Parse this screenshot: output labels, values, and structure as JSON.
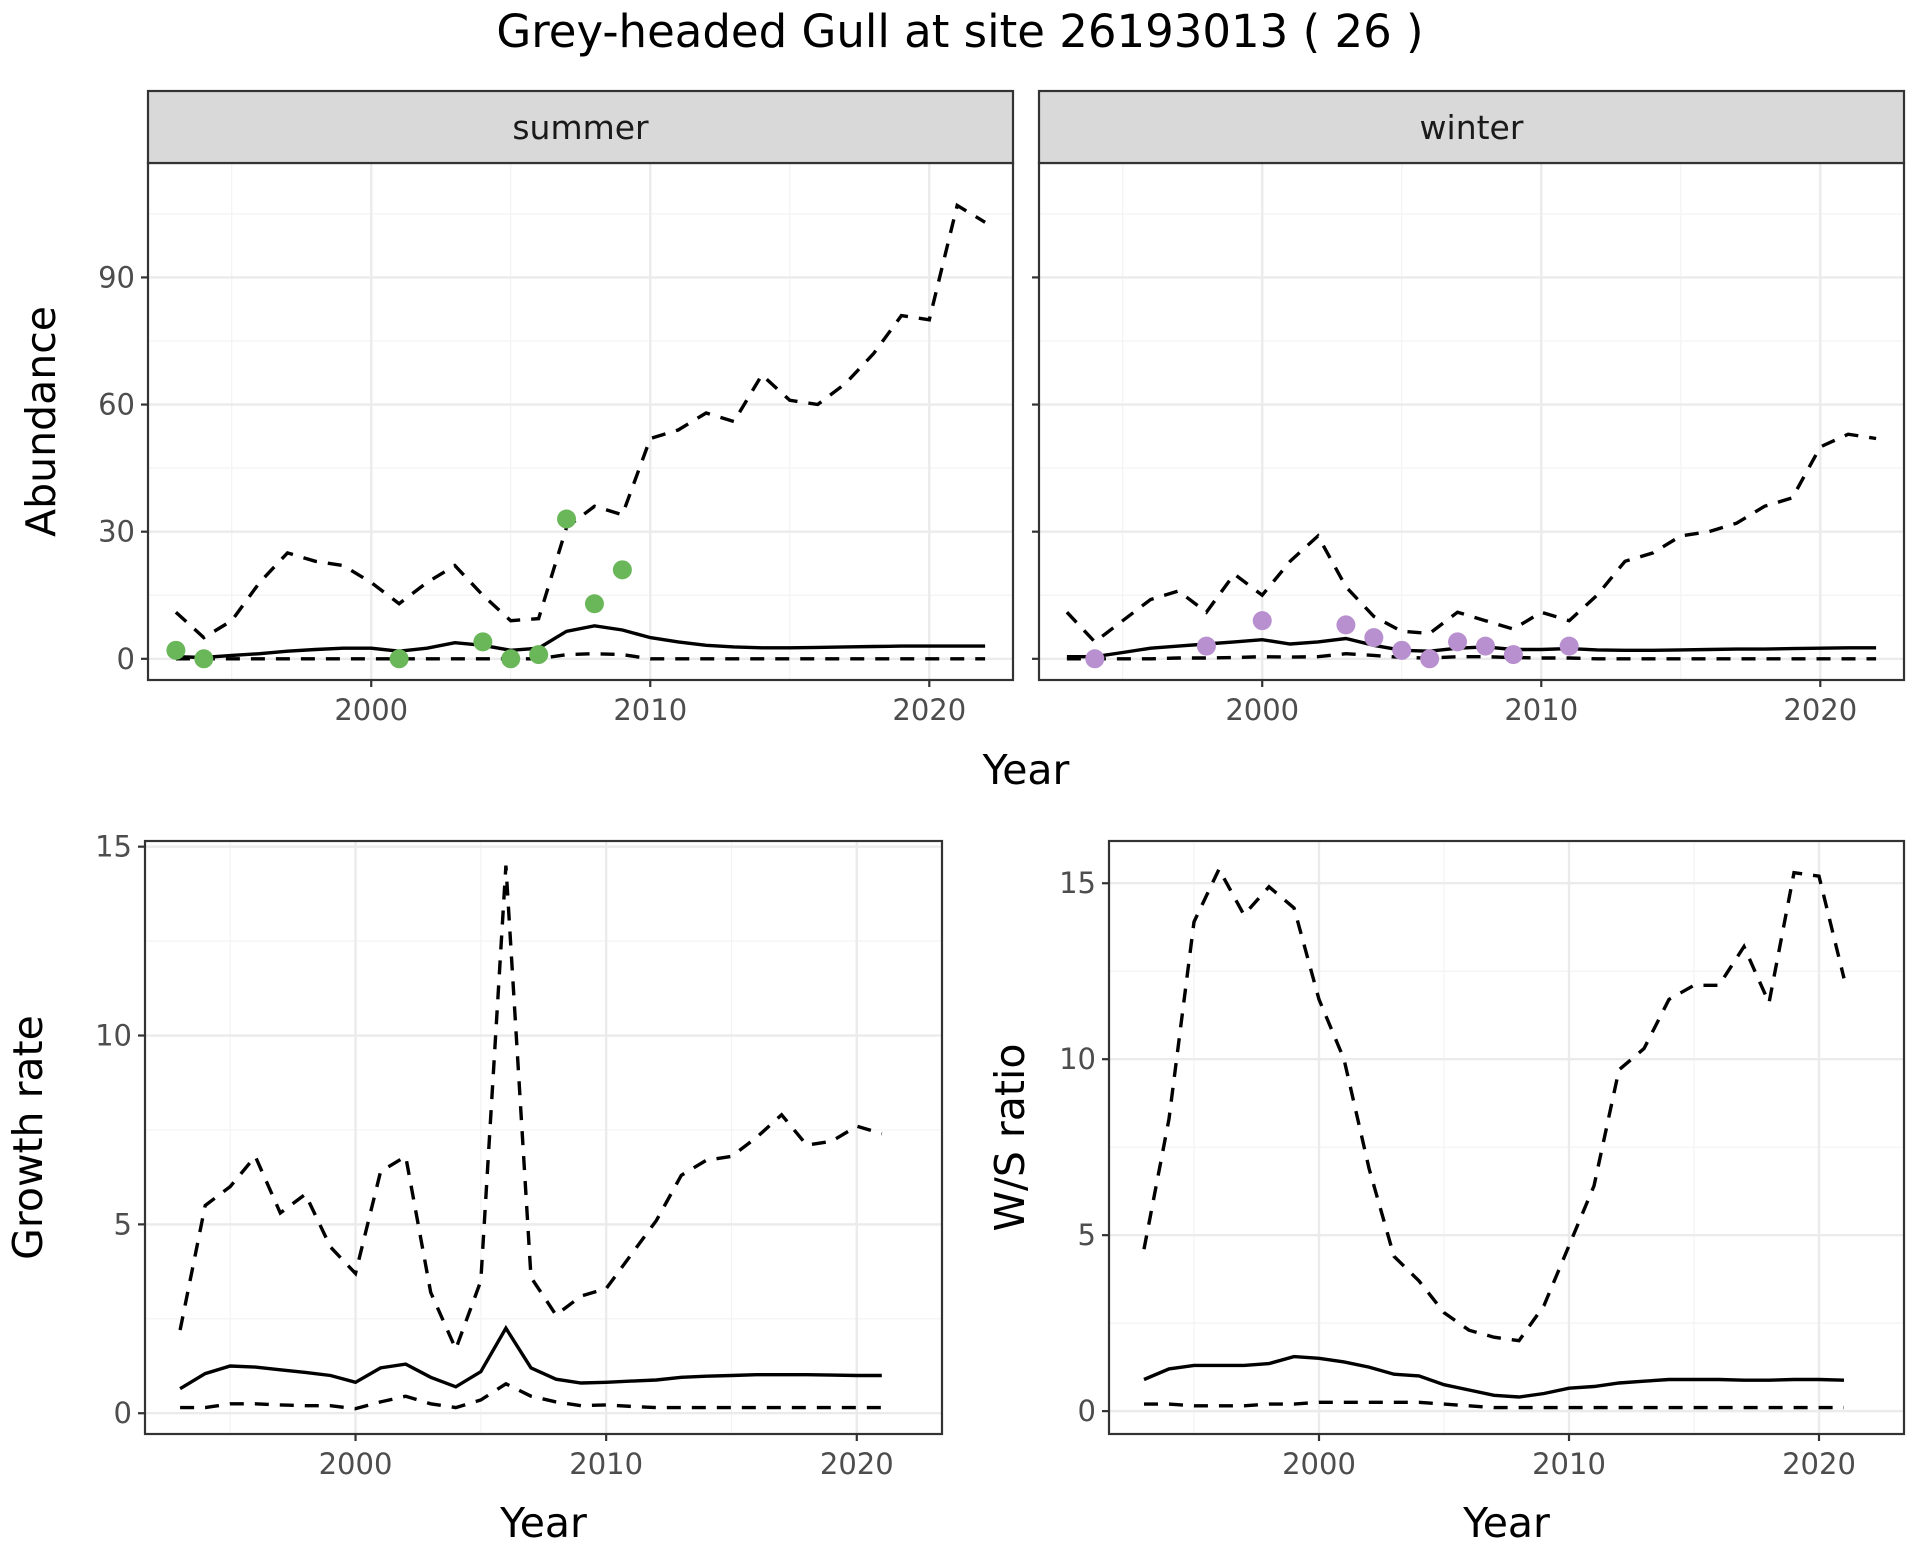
{
  "title": "Grey-headed Gull at site 26193013 ( 26 )",
  "colors": {
    "summer_points": "#6ab75a",
    "winter_points": "#b88fcf"
  },
  "chart_data": [
    {
      "id": "abundance-summer",
      "type": "line",
      "facet": "summer",
      "xlabel": "Year",
      "ylabel": "Abundance",
      "xlim": [
        1992,
        2023
      ],
      "ylim": [
        -5,
        117
      ],
      "xticks": [
        2000,
        2010,
        2020
      ],
      "yticks": [
        0,
        30,
        60,
        90
      ],
      "x": [
        1993,
        1994,
        1995,
        1996,
        1997,
        1998,
        1999,
        2000,
        2001,
        2002,
        2003,
        2004,
        2005,
        2006,
        2007,
        2008,
        2009,
        2010,
        2011,
        2012,
        2013,
        2014,
        2015,
        2016,
        2017,
        2018,
        2019,
        2020,
        2021,
        2022
      ],
      "series": [
        {
          "style": "solid",
          "values": [
            0.5,
            0.3,
            0.8,
            1.2,
            1.8,
            2.2,
            2.5,
            2.5,
            1.8,
            2.5,
            3.8,
            3.2,
            2.0,
            2.5,
            6.5,
            7.8,
            6.8,
            5.0,
            4.0,
            3.2,
            2.8,
            2.6,
            2.6,
            2.7,
            2.8,
            2.9,
            3.0,
            3.0,
            3.0,
            3.0
          ]
        },
        {
          "style": "dashed",
          "values": [
            11,
            5,
            9,
            18,
            25,
            23,
            22,
            18,
            13,
            18,
            22,
            15,
            9,
            9.5,
            31,
            36,
            34,
            52,
            54,
            58,
            56,
            67,
            61,
            60,
            65,
            72,
            81,
            80,
            107,
            103
          ]
        },
        {
          "style": "dashed",
          "values": [
            0,
            0,
            0,
            0,
            0,
            0,
            0,
            0,
            0,
            0,
            0,
            0,
            0,
            0,
            1,
            1.2,
            1,
            0,
            0,
            0,
            0,
            0,
            0,
            0,
            0,
            0,
            0,
            0,
            0,
            0
          ]
        }
      ],
      "points": {
        "x": [
          1993,
          1994,
          2001,
          2004,
          2005,
          2006,
          2007,
          2008,
          2009
        ],
        "y": [
          2,
          0,
          0,
          4,
          0,
          1,
          33,
          13,
          21
        ]
      }
    },
    {
      "id": "abundance-winter",
      "type": "line",
      "facet": "winter",
      "xlabel": "Year",
      "ylabel": "Abundance",
      "xlim": [
        1992,
        2023
      ],
      "ylim": [
        -5,
        117
      ],
      "xticks": [
        2000,
        2010,
        2020
      ],
      "yticks": [
        0,
        30,
        60,
        90
      ],
      "x": [
        1993,
        1994,
        1995,
        1996,
        1997,
        1998,
        1999,
        2000,
        2001,
        2002,
        2003,
        2004,
        2005,
        2006,
        2007,
        2008,
        2009,
        2010,
        2011,
        2012,
        2013,
        2014,
        2015,
        2016,
        2017,
        2018,
        2019,
        2020,
        2021,
        2022
      ],
      "series": [
        {
          "style": "solid",
          "values": [
            0.5,
            0.5,
            1.5,
            2.5,
            3.0,
            3.5,
            4.0,
            4.5,
            3.5,
            4.0,
            4.8,
            3.2,
            2.0,
            1.8,
            2.5,
            2.8,
            2.2,
            2.2,
            2.4,
            2.1,
            2.0,
            2.0,
            2.1,
            2.2,
            2.3,
            2.3,
            2.4,
            2.5,
            2.6,
            2.6
          ]
        },
        {
          "style": "dashed",
          "values": [
            11,
            4,
            9,
            14,
            16,
            11,
            20,
            15,
            23,
            29,
            17,
            10,
            6.5,
            6,
            11,
            9,
            7,
            11,
            9,
            15,
            23,
            25,
            29,
            30,
            32,
            36,
            38,
            50,
            53,
            52
          ]
        },
        {
          "style": "dashed",
          "values": [
            0,
            0,
            0,
            0,
            0.2,
            0.2,
            0.3,
            0.5,
            0.4,
            0.5,
            1.2,
            0.8,
            0.3,
            0.2,
            0.5,
            0.5,
            0.3,
            0.2,
            0.2,
            0,
            0,
            0,
            0,
            0,
            0,
            0,
            0,
            0,
            0,
            0
          ]
        }
      ],
      "points": {
        "x": [
          1994,
          1998,
          2000,
          2003,
          2004,
          2005,
          2006,
          2007,
          2008,
          2009,
          2011
        ],
        "y": [
          0,
          3,
          9,
          8,
          5,
          2,
          0,
          4,
          3,
          1,
          3
        ]
      }
    },
    {
      "id": "growth-rate",
      "type": "line",
      "xlabel": "Year",
      "ylabel": "Growth rate",
      "xlim": [
        1991.6,
        2023.4
      ],
      "ylim": [
        -0.55,
        15.15
      ],
      "xticks": [
        2000,
        2010,
        2020
      ],
      "yticks": [
        0,
        5,
        10,
        15
      ],
      "x": [
        1993,
        1994,
        1995,
        1996,
        1997,
        1998,
        1999,
        2000,
        2001,
        2002,
        2003,
        2004,
        2005,
        2006,
        2007,
        2008,
        2009,
        2010,
        2011,
        2012,
        2013,
        2014,
        2015,
        2016,
        2017,
        2018,
        2019,
        2020,
        2021
      ],
      "series": [
        {
          "style": "solid",
          "values": [
            0.65,
            1.05,
            1.25,
            1.22,
            1.15,
            1.08,
            1.0,
            0.82,
            1.2,
            1.3,
            0.95,
            0.7,
            1.1,
            2.25,
            1.2,
            0.9,
            0.8,
            0.82,
            0.85,
            0.88,
            0.95,
            0.98,
            1.0,
            1.02,
            1.02,
            1.02,
            1.01,
            1.0,
            1.0
          ]
        },
        {
          "style": "dashed",
          "values": [
            2.2,
            5.5,
            6.0,
            6.8,
            5.3,
            5.8,
            4.4,
            3.7,
            6.4,
            6.8,
            3.2,
            1.7,
            3.5,
            14.5,
            3.6,
            2.6,
            3.1,
            3.3,
            4.2,
            5.1,
            6.3,
            6.7,
            6.8,
            7.3,
            7.9,
            7.1,
            7.2,
            7.6,
            7.4
          ]
        },
        {
          "style": "dashed",
          "values": [
            0.15,
            0.15,
            0.25,
            0.25,
            0.22,
            0.2,
            0.2,
            0.12,
            0.3,
            0.45,
            0.25,
            0.15,
            0.35,
            0.78,
            0.45,
            0.3,
            0.2,
            0.22,
            0.18,
            0.15,
            0.15,
            0.15,
            0.15,
            0.15,
            0.15,
            0.15,
            0.15,
            0.15,
            0.15
          ]
        }
      ]
    },
    {
      "id": "ws-ratio",
      "type": "line",
      "xlabel": "Year",
      "ylabel": "W/S ratio",
      "xlim": [
        1991.6,
        2023.4
      ],
      "ylim": [
        -0.65,
        16.2
      ],
      "xticks": [
        2000,
        2010,
        2020
      ],
      "yticks": [
        0,
        5,
        10,
        15
      ],
      "x": [
        1993,
        1994,
        1995,
        1996,
        1997,
        1998,
        1999,
        2000,
        2001,
        2002,
        2003,
        2004,
        2005,
        2006,
        2007,
        2008,
        2009,
        2010,
        2011,
        2012,
        2013,
        2014,
        2015,
        2016,
        2017,
        2018,
        2019,
        2020,
        2021
      ],
      "series": [
        {
          "style": "solid",
          "values": [
            0.9,
            1.2,
            1.3,
            1.3,
            1.3,
            1.35,
            1.55,
            1.5,
            1.4,
            1.25,
            1.05,
            1.0,
            0.75,
            0.6,
            0.45,
            0.4,
            0.5,
            0.65,
            0.7,
            0.8,
            0.85,
            0.9,
            0.9,
            0.9,
            0.88,
            0.88,
            0.9,
            0.9,
            0.88
          ]
        },
        {
          "style": "dashed",
          "values": [
            4.6,
            8.3,
            13.9,
            15.4,
            14.1,
            14.9,
            14.3,
            11.7,
            10.0,
            6.9,
            4.4,
            3.7,
            2.8,
            2.3,
            2.1,
            2.0,
            3.0,
            4.7,
            6.4,
            9.7,
            10.3,
            11.7,
            12.1,
            12.1,
            13.2,
            11.6,
            15.3,
            15.2,
            12.3
          ]
        },
        {
          "style": "dashed",
          "values": [
            0.2,
            0.2,
            0.15,
            0.15,
            0.15,
            0.2,
            0.2,
            0.25,
            0.25,
            0.25,
            0.25,
            0.25,
            0.2,
            0.15,
            0.1,
            0.1,
            0.1,
            0.1,
            0.1,
            0.1,
            0.1,
            0.1,
            0.1,
            0.1,
            0.1,
            0.1,
            0.1,
            0.1,
            0.1
          ]
        }
      ]
    }
  ]
}
